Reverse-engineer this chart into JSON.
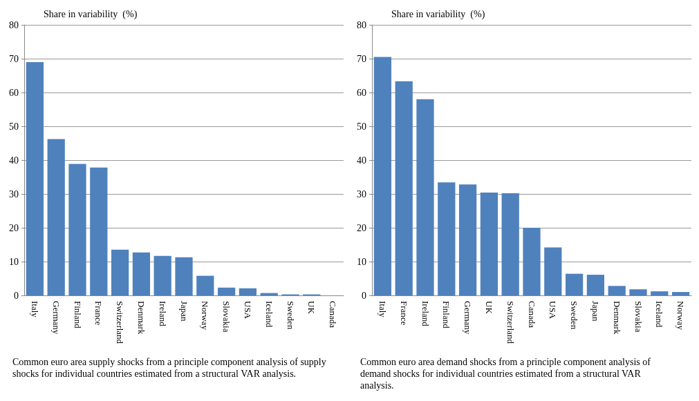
{
  "chart_data": [
    {
      "type": "bar",
      "ylabel": "Share in variability  (%)",
      "categories": [
        "Italy",
        "Germany",
        "Finland",
        "France",
        "Switzerland",
        "Denmark",
        "Ireland",
        "Japan",
        "Norway",
        "Slovakia",
        "USA",
        "Iceland",
        "Sweden",
        "UK",
        "Canada"
      ],
      "values": [
        69,
        46.2,
        38.9,
        37.8,
        13.5,
        12.7,
        11.7,
        11.3,
        5.8,
        2.3,
        2.1,
        0.7,
        0.3,
        0.3,
        0
      ],
      "color": "#4f81bd",
      "ylim": [
        0,
        80
      ],
      "yticks": [
        0,
        10,
        20,
        30,
        40,
        50,
        60,
        70,
        80
      ],
      "grid": "y",
      "annotations": [
        "Common euro area supply shocks from a principle component analysis of supply shocks for individual countries estimated from a structural VAR analysis."
      ]
    },
    {
      "type": "bar",
      "ylabel": "Share in variability  (%)",
      "categories": [
        "Italy",
        "France",
        "Ireland",
        "Finland",
        "Germany",
        "UK",
        "Switzerland",
        "Canada",
        "USA",
        "Sweden",
        "Japan",
        "Denmark",
        "Slovakia",
        "Iceland",
        "Norway"
      ],
      "values": [
        70.5,
        63.3,
        58,
        33.4,
        32.8,
        30.4,
        30.2,
        20,
        14.2,
        6.4,
        6.1,
        2.8,
        1.8,
        1.2,
        1
      ],
      "color": "#4f81bd",
      "ylim": [
        0,
        80
      ],
      "yticks": [
        0,
        10,
        20,
        30,
        40,
        50,
        60,
        70,
        80
      ],
      "grid": "y",
      "annotations": [
        "Common euro area demand shocks from a principle component analysis of demand shocks for individual countries estimated from a structural VAR analysis."
      ]
    }
  ]
}
